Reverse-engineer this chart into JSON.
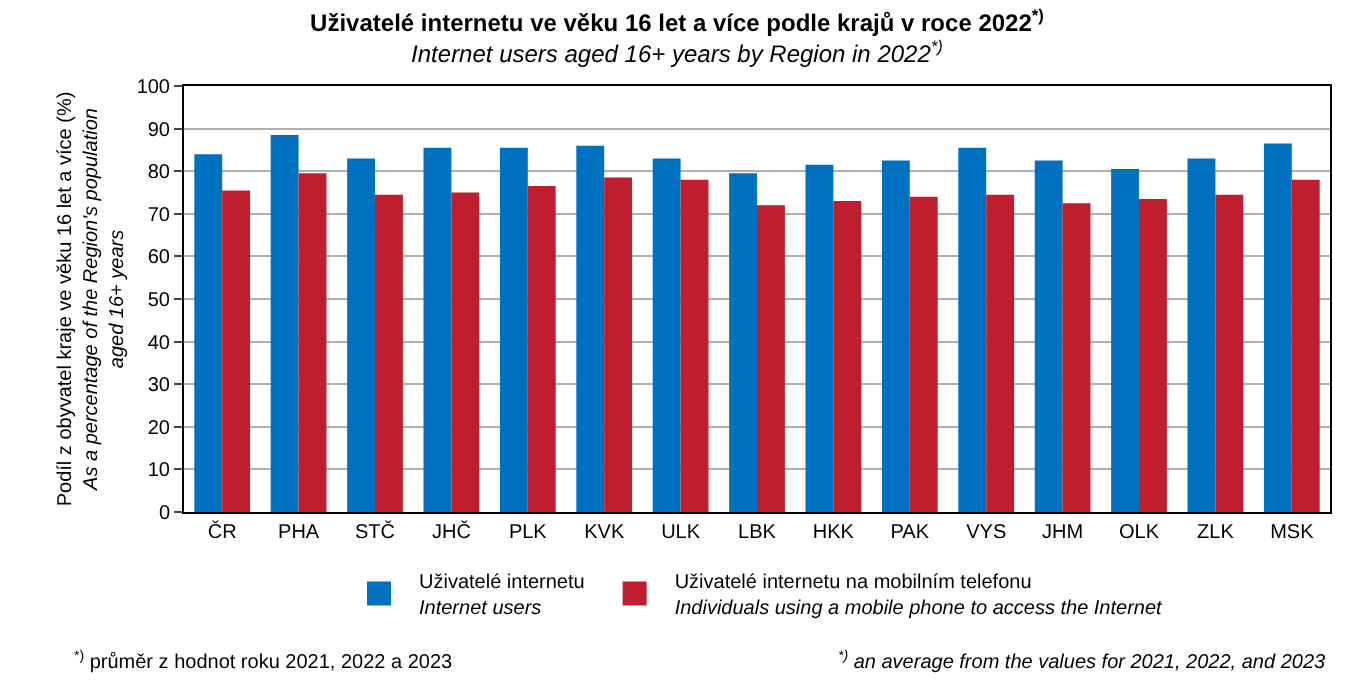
{
  "chart_data": {
    "type": "bar",
    "title": "Uživatelé internetu ve věku 16 let a více podle krajů v roce 2022$^{*)}$",
    "subtitle": "Internet users aged 16+ years by Region in 2022$^{*)}$",
    "ylabel": "Podíl z obyvatel kraje ve věku 16 let a více (%)\nAs a percentage of the Region's population\naged 16+ years",
    "categories": [
      "ČR",
      "PHA",
      "STČ",
      "JHČ",
      "PLK",
      "KVK",
      "ULK",
      "LBK",
      "HKK",
      "PAK",
      "VYS",
      "JHM",
      "OLK",
      "ZLK",
      "MSK"
    ],
    "series": [
      {
        "name": "Uživatelé internetu\nInternet users",
        "color": "#0070c0",
        "values": [
          84,
          88.5,
          83,
          85.5,
          85.5,
          86,
          83,
          79.5,
          81.5,
          82.5,
          85.5,
          82.5,
          80.5,
          83,
          86.5
        ]
      },
      {
        "name": "Uživatelé internetu na mobilním telefonu\nIndividuals using a mobile phone to access the Internet",
        "color": "#be1e2d",
        "values": [
          75.5,
          79.5,
          74.5,
          75,
          76.5,
          78.5,
          78,
          72,
          73,
          74,
          74.5,
          72.5,
          73.5,
          74.5,
          78
        ]
      }
    ],
    "ylim": [
      0,
      100
    ],
    "yticks": [
      0,
      10,
      20,
      30,
      40,
      50,
      60,
      70,
      80,
      90,
      100
    ],
    "grid": "y",
    "legend": "bottom",
    "annotations": [
      "$^{*)}$ průměr z hodnot roku 2021, 2022 a 2023",
      "$^{*)}$ an average from the values for 2021, 2022, and 2023"
    ]
  }
}
